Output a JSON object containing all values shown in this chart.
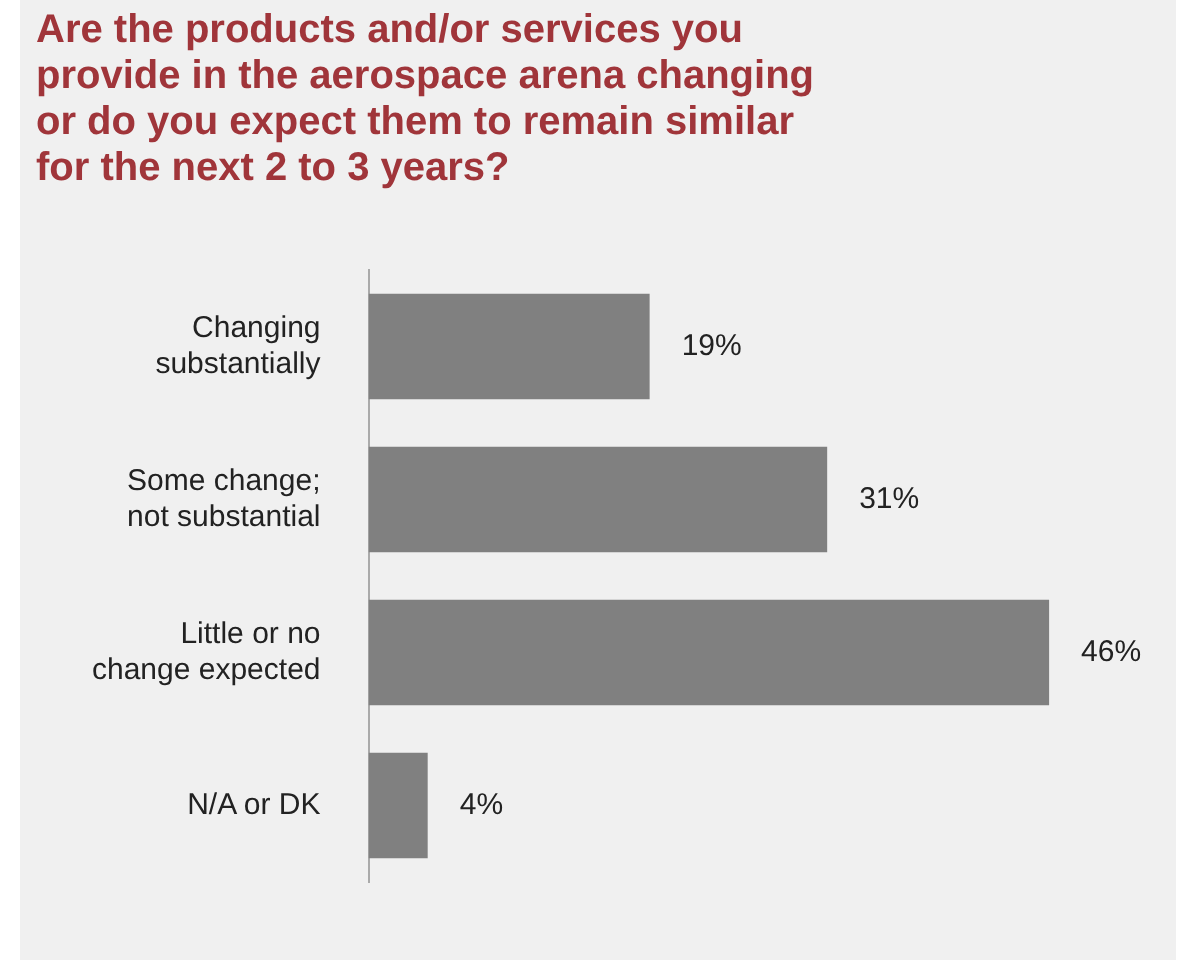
{
  "chart_data": {
    "type": "bar",
    "orientation": "horizontal",
    "title": "Are the products and/or services you provide in the aerospace arena changing or do you expect them to remain similar for the next 2 to 3 years?",
    "categories": [
      "Changing substantially",
      "Some change; not substantial",
      "Little or no change expected",
      "N/A or DK"
    ],
    "values": [
      19,
      31,
      46,
      4
    ],
    "value_labels": [
      "19%",
      "31%",
      "46%",
      "4%"
    ],
    "color": "#808080",
    "legend": false
  }
}
